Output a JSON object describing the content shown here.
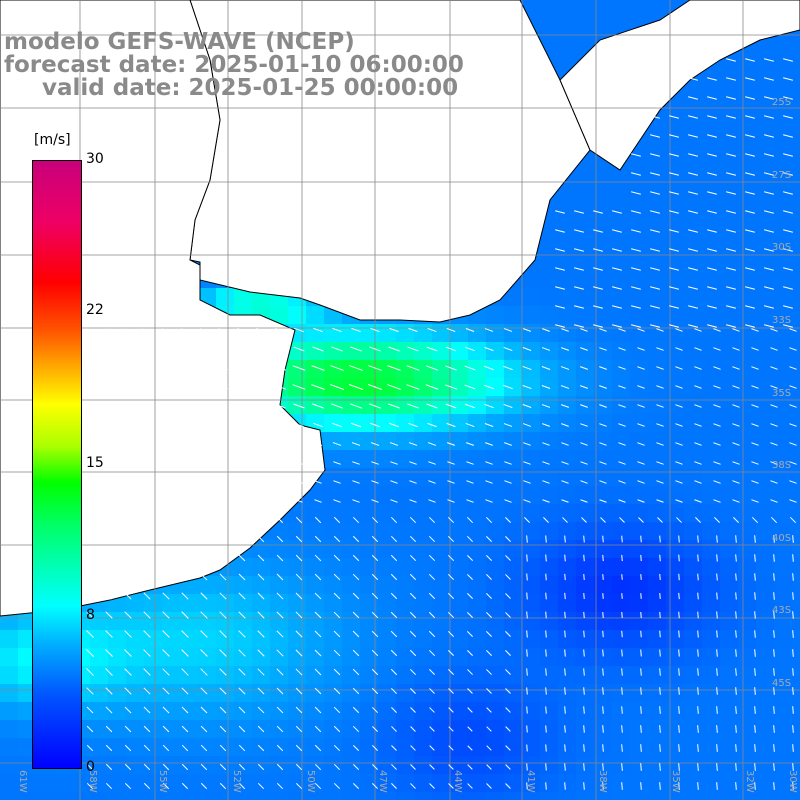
{
  "header": {
    "line1": "modelo GEFS-WAVE (NCEP)",
    "line2": "forecast date: 2025-01-10 06:00:00",
    "line3": "valid date: 2025-01-25 00:00:00"
  },
  "colorbar": {
    "unit": "[m/s]",
    "min": 0,
    "max": 30,
    "ticks": [
      "30",
      "22",
      "15",
      "8",
      "0"
    ],
    "tick_values": [
      30,
      22,
      15,
      8,
      0
    ],
    "colors": [
      "#0000ff",
      "#00aaff",
      "#00ffff",
      "#00ff00",
      "#ffff00",
      "#ff8800",
      "#ff0000",
      "#c8007a"
    ]
  },
  "map": {
    "region": "South Atlantic – southern Brazil / Uruguay / Argentina coast",
    "lon_labels": [
      "61W",
      "58W",
      "55W",
      "52W",
      "50W",
      "47W",
      "44W",
      "41W",
      "38W",
      "35W",
      "32W",
      "30W"
    ],
    "lat_labels": [
      "25S",
      "27S",
      "30S",
      "33S",
      "35S",
      "38S",
      "40S",
      "43S",
      "45S"
    ],
    "land_color": "#ffffff",
    "coast_color": "#000000",
    "vector_color": "#ffffff",
    "prevailing_wind": "north-westward onshore arrows"
  }
}
